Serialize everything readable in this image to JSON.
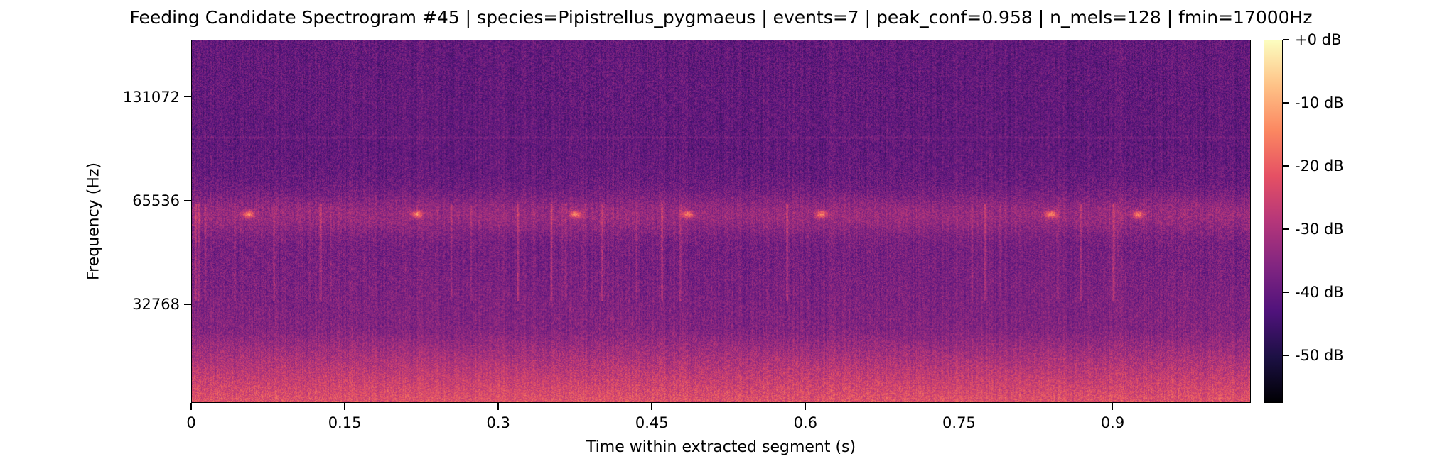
{
  "chart_data": {
    "type": "heatmap",
    "title": "Feeding Candidate Spectrogram #45 | species=Pipistrellus_pygmaeus | events=7 | peak_conf=0.958 | n_mels=128 | fmin=17000Hz",
    "xlabel": "Time within extracted segment (s)",
    "ylabel": "Frequency (Hz)",
    "x_ticks": [
      "0",
      "0.15",
      "0.3",
      "0.45",
      "0.6",
      "0.75",
      "0.9"
    ],
    "x_tick_values": [
      0,
      0.15,
      0.3,
      0.45,
      0.6,
      0.75,
      0.9
    ],
    "xlim": [
      0,
      1.035
    ],
    "y_scale": "log2",
    "y_ticks": [
      "32768",
      "65536",
      "131072"
    ],
    "y_tick_values": [
      32768,
      65536,
      131072
    ],
    "ylim": [
      17000,
      192000
    ],
    "colormap": "magma",
    "colorbar": {
      "ticks": [
        "+0 dB",
        "-10 dB",
        "-20 dB",
        "-30 dB",
        "-40 dB",
        "-50 dB"
      ],
      "tick_values": [
        0,
        -10,
        -20,
        -30,
        -40,
        -50
      ],
      "range": [
        -57.5,
        0
      ]
    },
    "call_times_s": [
      0.055,
      0.22,
      0.375,
      0.485,
      0.615,
      0.84,
      0.925
    ],
    "call_frequency_hz": 60000
  }
}
